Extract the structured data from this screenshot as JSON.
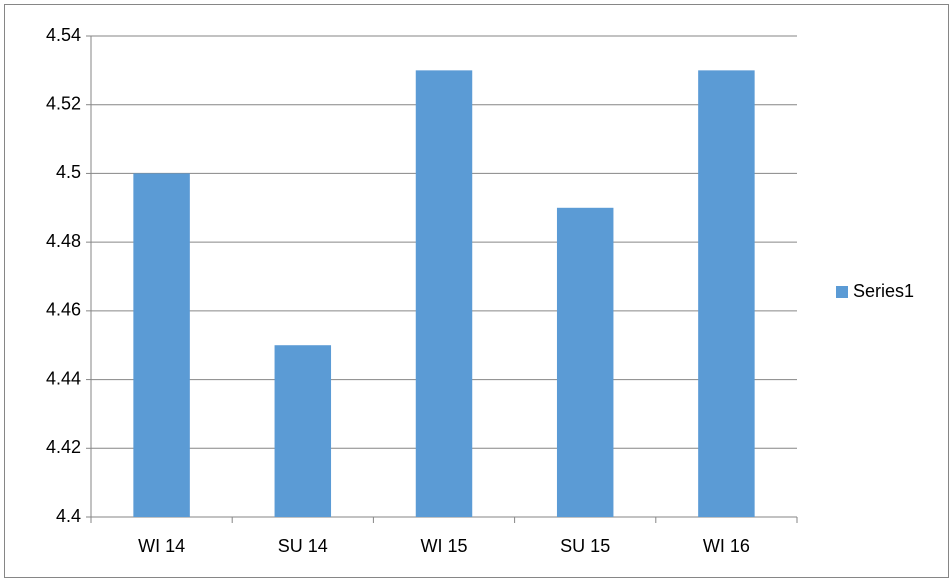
{
  "chart_data": {
    "type": "bar",
    "categories": [
      "WI 14",
      "SU 14",
      "WI 15",
      "SU 15",
      "WI 16"
    ],
    "series": [
      {
        "name": "Series1",
        "color": "#5b9bd5",
        "values": [
          4.5,
          4.45,
          4.53,
          4.49,
          4.53
        ]
      }
    ],
    "ylim": [
      4.4,
      4.54
    ],
    "yticks": [
      4.4,
      4.42,
      4.44,
      4.46,
      4.48,
      4.5,
      4.52,
      4.54
    ],
    "grid": true,
    "legend": "right"
  }
}
